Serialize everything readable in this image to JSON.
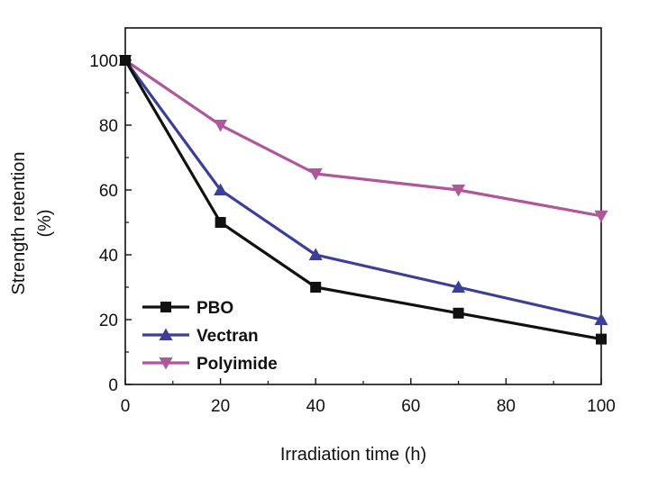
{
  "chart_data": {
    "type": "line",
    "x": [
      0,
      20,
      40,
      70,
      100
    ],
    "series": [
      {
        "name": "PBO",
        "values": [
          100,
          50,
          30,
          22,
          14
        ],
        "color": "#111111",
        "marker": "square"
      },
      {
        "name": "Vectran",
        "values": [
          100,
          60,
          40,
          30,
          20
        ],
        "color": "#3b3f97",
        "marker": "triangle-up"
      },
      {
        "name": "Polyimide",
        "values": [
          100,
          80,
          65,
          60,
          52
        ],
        "color": "#b0569b",
        "marker": "triangle-down"
      }
    ],
    "xlabel": "Irradiation time (h)",
    "ylabel_line1": "Strength retention",
    "ylabel_line2": "(%)",
    "xlim": [
      0,
      100
    ],
    "ylim": [
      0,
      110
    ],
    "xticks": [
      0,
      20,
      40,
      60,
      80,
      100
    ],
    "yticks": [
      0,
      20,
      40,
      60,
      80,
      100
    ],
    "grid": false,
    "legend_position": "bottom-left"
  }
}
